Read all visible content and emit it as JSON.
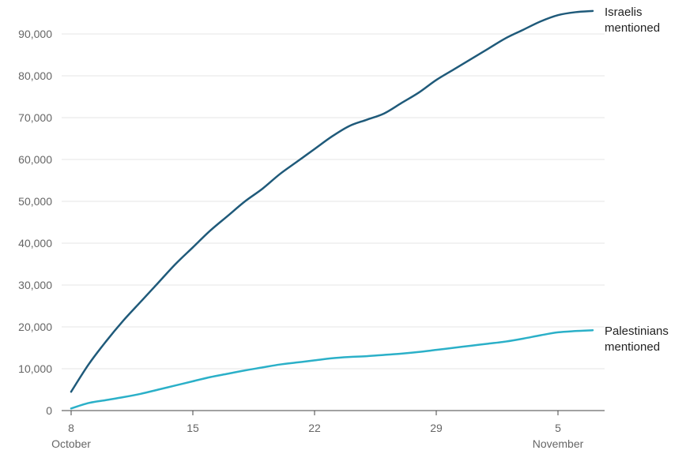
{
  "chart_data": {
    "type": "line",
    "title": "",
    "xlabel": "",
    "ylabel": "",
    "ylim": [
      0,
      95000
    ],
    "grid": true,
    "y_ticks": [
      {
        "value": 0,
        "label": "0"
      },
      {
        "value": 10000,
        "label": "10,000"
      },
      {
        "value": 20000,
        "label": "20,000"
      },
      {
        "value": 30000,
        "label": "30,000"
      },
      {
        "value": 40000,
        "label": "40,000"
      },
      {
        "value": 50000,
        "label": "50,000"
      },
      {
        "value": 60000,
        "label": "60,000"
      },
      {
        "value": 70000,
        "label": "70,000"
      },
      {
        "value": 80000,
        "label": "80,000"
      },
      {
        "value": 90000,
        "label": "90,000"
      }
    ],
    "x_ticks": [
      {
        "date": "Oct 8",
        "day": "8",
        "month": "October"
      },
      {
        "date": "Oct 15",
        "day": "15",
        "month": ""
      },
      {
        "date": "Oct 22",
        "day": "22",
        "month": ""
      },
      {
        "date": "Oct 29",
        "day": "29",
        "month": ""
      },
      {
        "date": "Nov 5",
        "day": "5",
        "month": "November"
      }
    ],
    "x": [
      "Oct 8",
      "Oct 9",
      "Oct 10",
      "Oct 11",
      "Oct 12",
      "Oct 13",
      "Oct 14",
      "Oct 15",
      "Oct 16",
      "Oct 17",
      "Oct 18",
      "Oct 19",
      "Oct 20",
      "Oct 21",
      "Oct 22",
      "Oct 23",
      "Oct 24",
      "Oct 25",
      "Oct 26",
      "Oct 27",
      "Oct 28",
      "Oct 29",
      "Oct 30",
      "Oct 31",
      "Nov 1",
      "Nov 2",
      "Nov 3",
      "Nov 4",
      "Nov 5",
      "Nov 6",
      "Nov 7"
    ],
    "series": [
      {
        "name": "Israelis mentioned",
        "label_lines": [
          "Israelis",
          "mentioned"
        ],
        "color": "#1f5a7a",
        "values": [
          4500,
          11000,
          16500,
          21500,
          26000,
          30500,
          35000,
          39000,
          43000,
          46500,
          50000,
          53000,
          56500,
          59500,
          62500,
          65500,
          68000,
          69500,
          71000,
          73500,
          76000,
          79000,
          81500,
          84000,
          86500,
          89000,
          91000,
          93000,
          94500,
          95200,
          95500
        ]
      },
      {
        "name": "Palestinians mentioned",
        "label_lines": [
          "Palestinians",
          "mentioned"
        ],
        "color": "#2bb0c8",
        "values": [
          500,
          1800,
          2500,
          3200,
          4000,
          5000,
          6000,
          7000,
          8000,
          8800,
          9600,
          10300,
          11000,
          11500,
          12000,
          12500,
          12800,
          13000,
          13300,
          13600,
          14000,
          14500,
          15000,
          15500,
          16000,
          16500,
          17200,
          18000,
          18700,
          19000,
          19200
        ]
      }
    ]
  }
}
